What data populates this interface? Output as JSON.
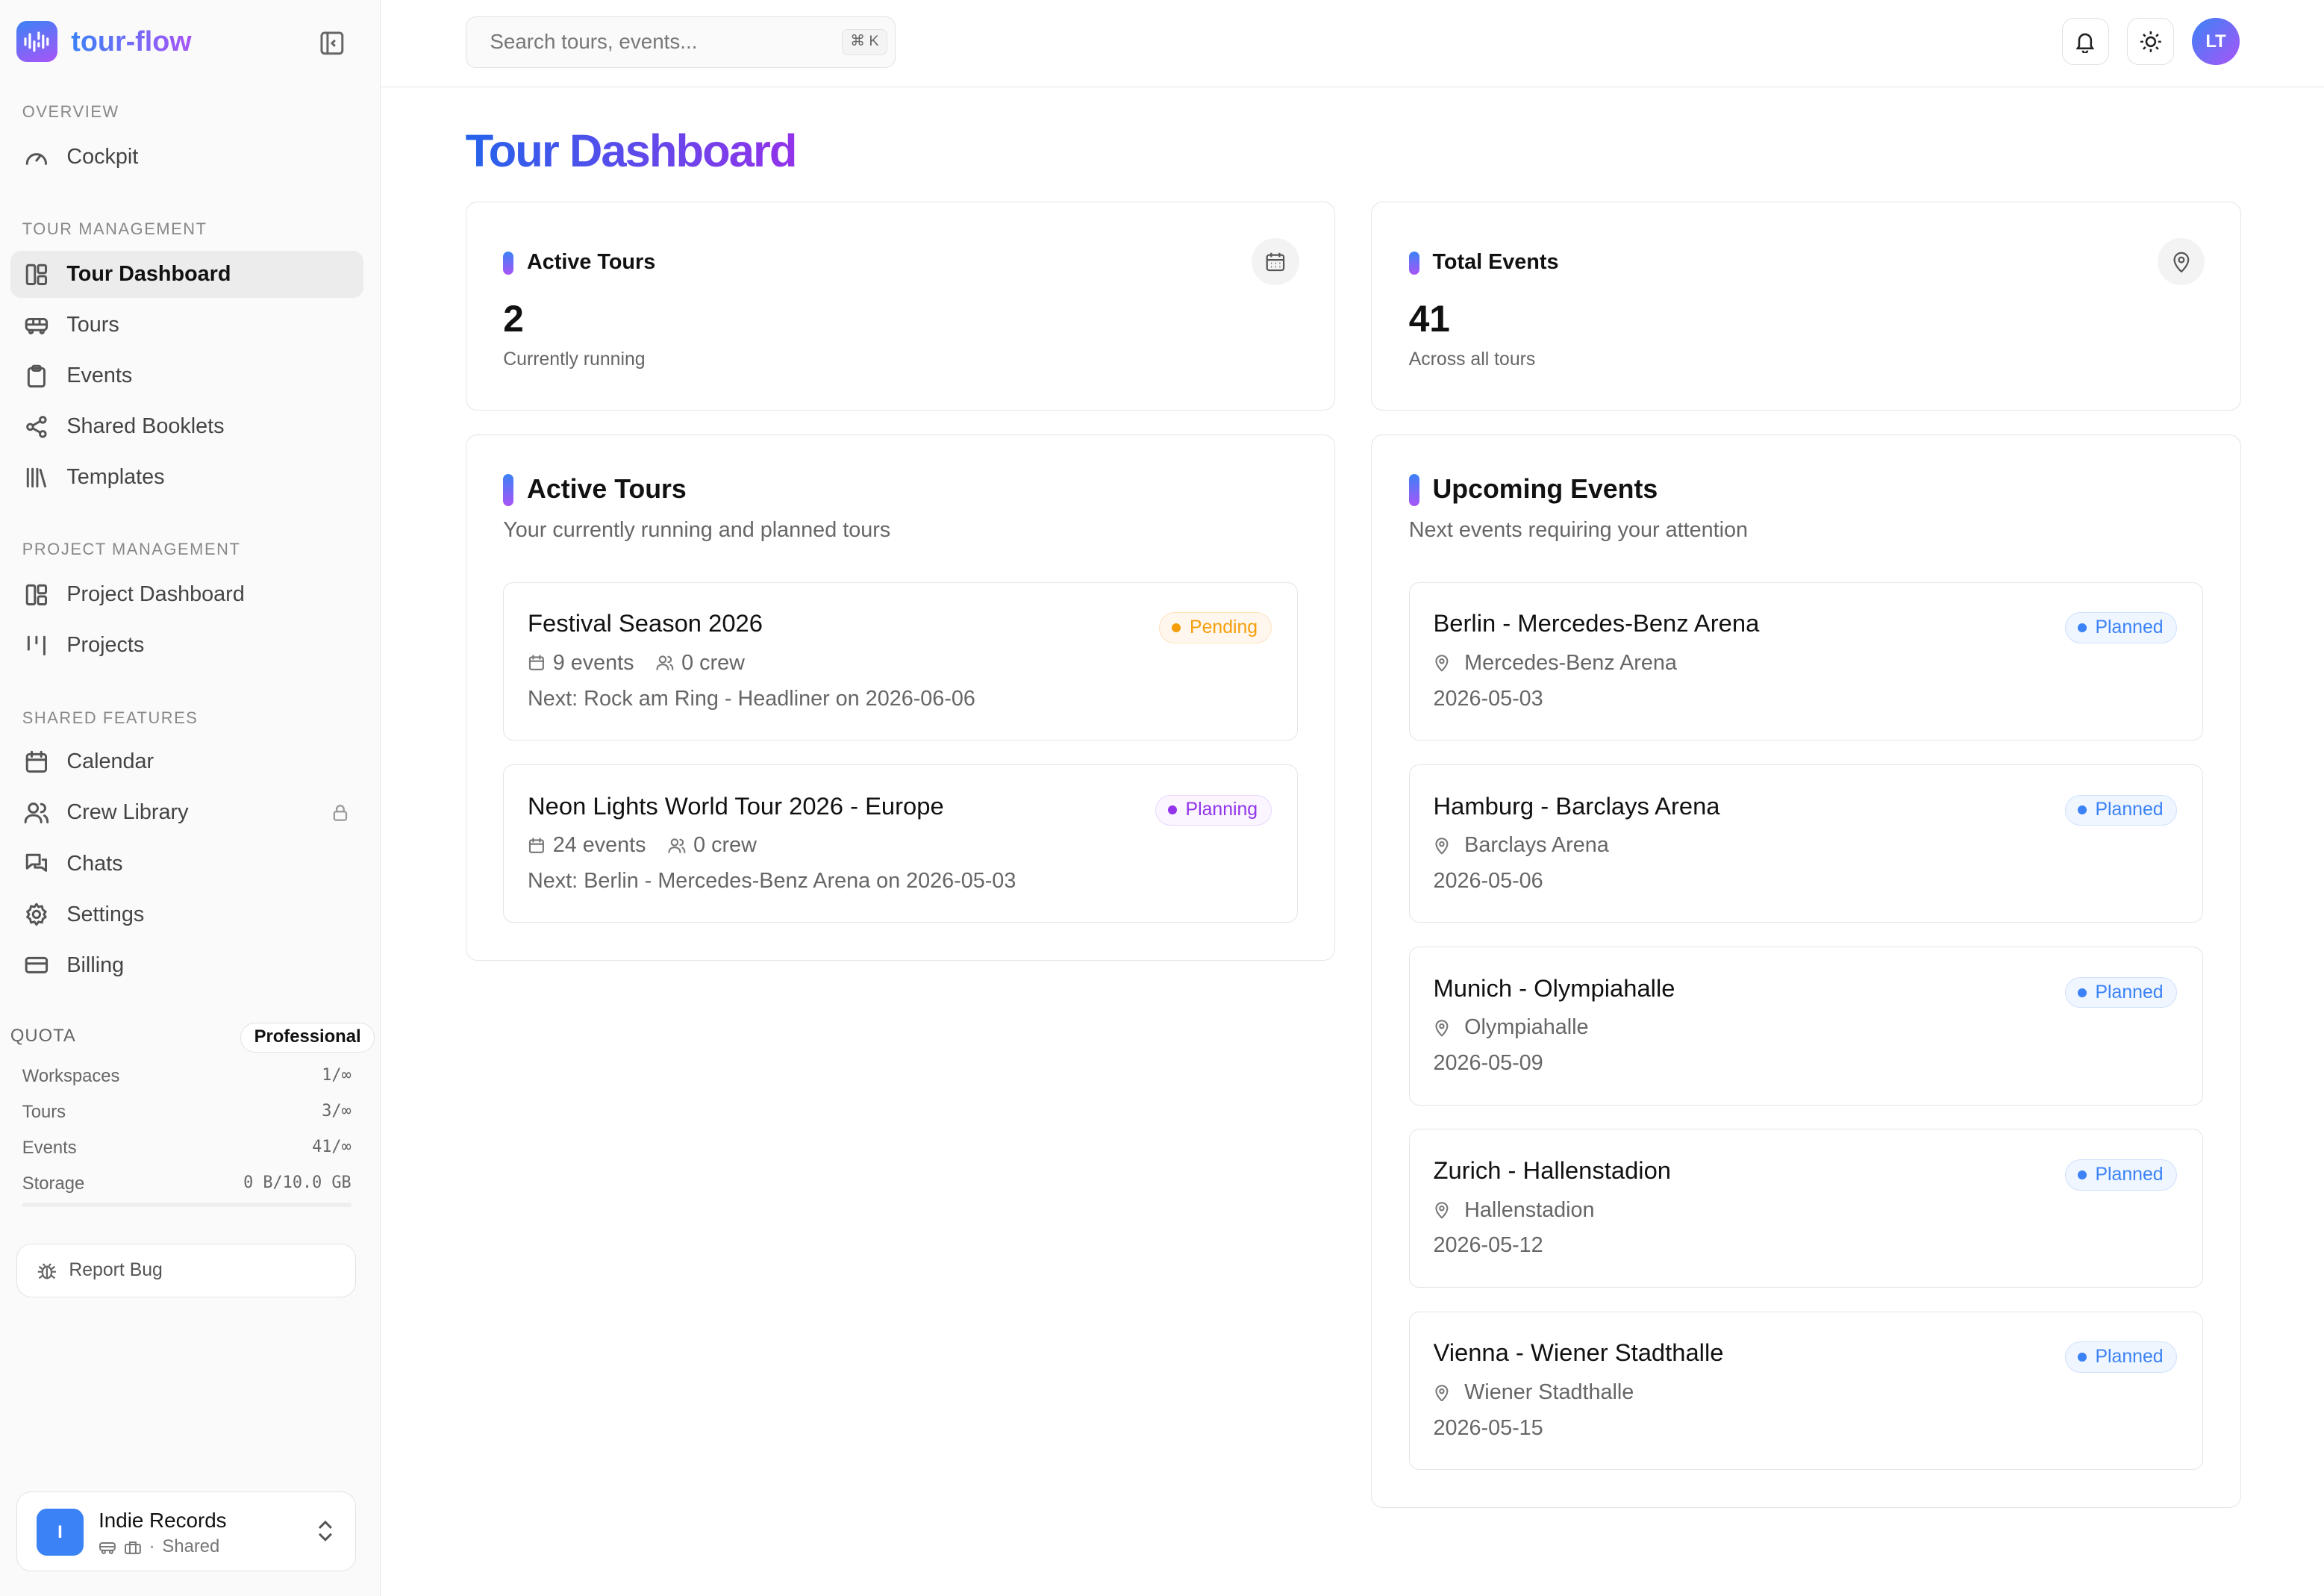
{
  "app": {
    "name": "tour-flow"
  },
  "colors": {
    "accent_blue": "#3b82f6",
    "accent_purple": "#a855f7",
    "pending": "#f59e0b",
    "planning": "#9333ea",
    "planned": "#3b82f6"
  },
  "sidebar": {
    "sections": [
      {
        "label": "OVERVIEW",
        "items": [
          {
            "label": "Cockpit",
            "icon": "gauge-icon"
          }
        ]
      },
      {
        "label": "TOUR MANAGEMENT",
        "items": [
          {
            "label": "Tour Dashboard",
            "icon": "dashboard-icon",
            "active": true
          },
          {
            "label": "Tours",
            "icon": "bus-icon"
          },
          {
            "label": "Events",
            "icon": "clipboard-icon"
          },
          {
            "label": "Shared Booklets",
            "icon": "share-icon"
          },
          {
            "label": "Templates",
            "icon": "library-icon"
          }
        ]
      },
      {
        "label": "PROJECT MANAGEMENT",
        "items": [
          {
            "label": "Project Dashboard",
            "icon": "dashboard-icon"
          },
          {
            "label": "Projects",
            "icon": "kanban-icon"
          }
        ]
      },
      {
        "label": "SHARED FEATURES",
        "items": [
          {
            "label": "Calendar",
            "icon": "calendar-icon"
          },
          {
            "label": "Crew Library",
            "icon": "users-icon",
            "locked": true
          },
          {
            "label": "Chats",
            "icon": "chat-icon"
          },
          {
            "label": "Settings",
            "icon": "gear-icon"
          },
          {
            "label": "Billing",
            "icon": "card-icon"
          }
        ]
      }
    ],
    "quota": {
      "title": "QUOTA",
      "plan": "Professional",
      "rows": [
        {
          "label": "Workspaces",
          "value": "1/∞"
        },
        {
          "label": "Tours",
          "value": "3/∞"
        },
        {
          "label": "Events",
          "value": "41/∞"
        },
        {
          "label": "Storage",
          "value": "0 B/10.0 GB"
        }
      ],
      "storage_used_fraction": 0
    },
    "report_bug": "Report Bug",
    "workspace": {
      "initial": "I",
      "name": "Indie Records",
      "sub": "Shared"
    }
  },
  "header": {
    "search_placeholder": "Search tours, events...",
    "shortcut": "⌘ K",
    "avatar": "LT"
  },
  "page": {
    "title": "Tour Dashboard"
  },
  "stats": [
    {
      "label": "Active Tours",
      "value": "2",
      "sub": "Currently running",
      "icon": "calendar-icon"
    },
    {
      "label": "Total Events",
      "value": "41",
      "sub": "Across all tours",
      "icon": "map-pin-icon"
    }
  ],
  "active_tours": {
    "title": "Active Tours",
    "subtitle": "Your currently running and planned tours",
    "items": [
      {
        "name": "Festival Season 2026",
        "events": "9 events",
        "crew": "0 crew",
        "next": "Next: Rock am Ring - Headliner on 2026-06-06",
        "status": "Pending",
        "status_type": "pending"
      },
      {
        "name": "Neon Lights World Tour 2026 - Europe",
        "events": "24 events",
        "crew": "0 crew",
        "next": "Next: Berlin - Mercedes-Benz Arena on 2026-05-03",
        "status": "Planning",
        "status_type": "planning"
      }
    ]
  },
  "upcoming_events": {
    "title": "Upcoming Events",
    "subtitle": "Next events requiring your attention",
    "items": [
      {
        "name": "Berlin - Mercedes-Benz Arena",
        "venue": "Mercedes-Benz Arena",
        "date": "2026-05-03",
        "status": "Planned"
      },
      {
        "name": "Hamburg - Barclays Arena",
        "venue": "Barclays Arena",
        "date": "2026-05-06",
        "status": "Planned"
      },
      {
        "name": "Munich - Olympiahalle",
        "venue": "Olympiahalle",
        "date": "2026-05-09",
        "status": "Planned"
      },
      {
        "name": "Zurich - Hallenstadion",
        "venue": "Hallenstadion",
        "date": "2026-05-12",
        "status": "Planned"
      },
      {
        "name": "Vienna - Wiener Stadthalle",
        "venue": "Wiener Stadthalle",
        "date": "2026-05-15",
        "status": "Planned"
      }
    ]
  }
}
